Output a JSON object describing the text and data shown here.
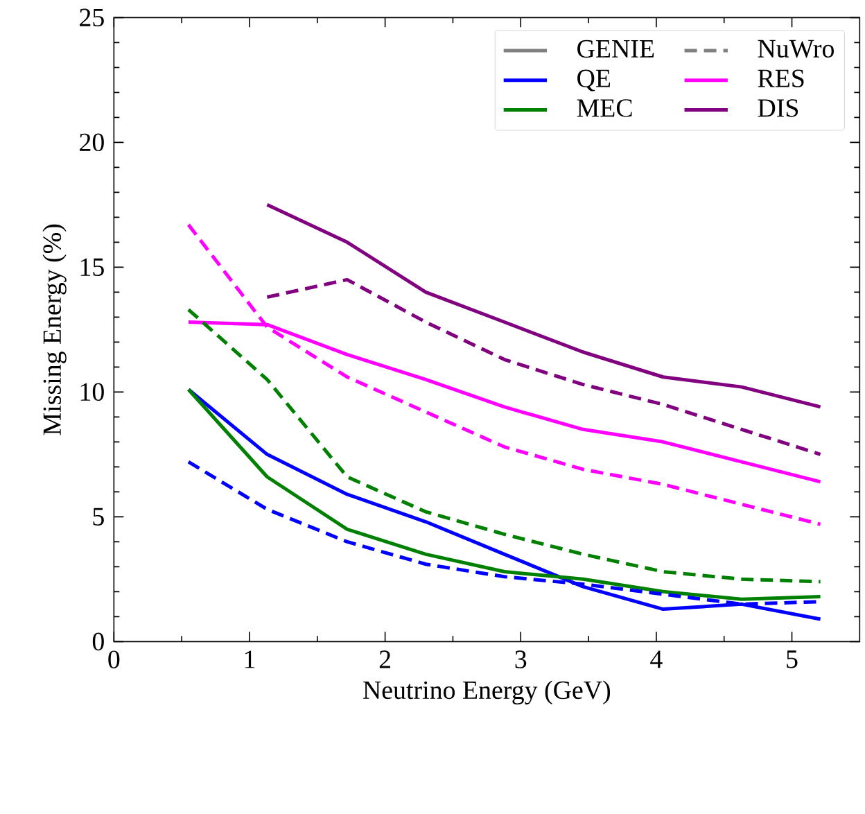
{
  "chart_data": {
    "type": "line",
    "xlabel": "Neutrino Energy (GeV)",
    "ylabel": "Missing Energy (%)",
    "xlim": [
      0,
      5.5
    ],
    "ylim": [
      0,
      25
    ],
    "xticks": [
      0,
      1,
      2,
      3,
      4,
      5
    ],
    "yticks": [
      0,
      5,
      10,
      15,
      20,
      25
    ],
    "legend": "top right",
    "grid": false,
    "marker": "none",
    "x": [
      0.55,
      1.13,
      1.72,
      2.3,
      2.88,
      3.46,
      4.05,
      4.63,
      5.21
    ],
    "series": [
      {
        "name": "GENIE",
        "color": "#808080",
        "line_style": "solid",
        "values": [
          null,
          null,
          null,
          null,
          null,
          null,
          null,
          null,
          null
        ]
      },
      {
        "name": "NuWro",
        "color": "#808080",
        "line_style": "dashed",
        "values": [
          null,
          null,
          null,
          null,
          null,
          null,
          null,
          null,
          null
        ]
      },
      {
        "name": "QE",
        "color": "#0000ff",
        "line_style": "solid",
        "values": [
          10.1,
          7.5,
          5.9,
          4.8,
          3.5,
          2.2,
          1.3,
          1.5,
          0.9
        ]
      },
      {
        "name": "RES",
        "color": "#ff00ff",
        "line_style": "solid",
        "values": [
          12.8,
          12.7,
          11.5,
          10.5,
          9.4,
          8.5,
          8.0,
          7.2,
          6.4
        ]
      },
      {
        "name": "MEC",
        "color": "#008000",
        "line_style": "solid",
        "values": [
          10.1,
          6.6,
          4.5,
          3.5,
          2.8,
          2.5,
          2.0,
          1.7,
          1.8
        ]
      },
      {
        "name": "DIS",
        "color": "#800080",
        "line_style": "solid",
        "values": [
          null,
          17.5,
          16.0,
          14.0,
          12.8,
          11.6,
          10.6,
          10.2,
          9.4
        ]
      },
      {
        "color": "#0000ff",
        "line_style": "dashed",
        "values": [
          7.2,
          5.3,
          4.0,
          3.1,
          2.6,
          2.3,
          1.9,
          1.5,
          1.6
        ]
      },
      {
        "color": "#ff00ff",
        "line_style": "dashed",
        "values": [
          16.7,
          12.6,
          10.6,
          9.2,
          7.8,
          6.9,
          6.3,
          5.5,
          4.7
        ]
      },
      {
        "color": "#008000",
        "line_style": "dashed",
        "values": [
          13.3,
          10.5,
          6.6,
          5.2,
          4.3,
          3.5,
          2.8,
          2.5,
          2.4
        ]
      },
      {
        "color": "#800080",
        "line_style": "dashed",
        "values": [
          null,
          13.8,
          14.5,
          12.8,
          11.3,
          10.3,
          9.5,
          8.5,
          7.5
        ]
      }
    ]
  }
}
